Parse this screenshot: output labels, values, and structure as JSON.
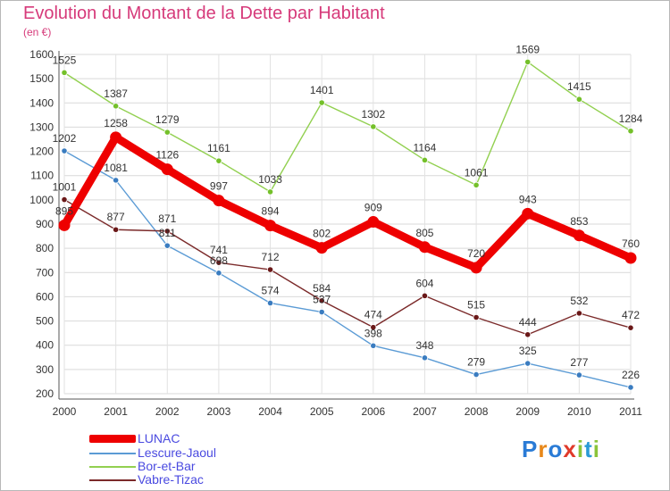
{
  "title": "Evolution du Montant de la Dette par Habitant",
  "subtitle": "(en €)",
  "logo": {
    "letters": [
      "P",
      "r",
      "o",
      "x",
      "i",
      "t",
      "i"
    ],
    "colors": [
      "#2a7bd6",
      "#e8881a",
      "#2a7bd6",
      "#e03a2a",
      "#8ac43a",
      "#2a9ad6",
      "#8ac43a"
    ]
  },
  "chart_data": {
    "type": "line",
    "title": "Evolution du Montant de la Dette par Habitant",
    "ylabel": "(en €)",
    "x": [
      "2000",
      "2001",
      "2002",
      "2003",
      "2004",
      "2005",
      "2006",
      "2007",
      "2008",
      "2009",
      "2010",
      "2011"
    ],
    "ylim": [
      200,
      1600
    ],
    "yticks": [
      "200",
      "300",
      "400",
      "500",
      "600",
      "700",
      "800",
      "900",
      "1000",
      "1100",
      "1200",
      "1300",
      "1400",
      "1500",
      "1600"
    ],
    "grid": true,
    "legend_position": "bottom-left",
    "series": [
      {
        "name": "LUNAC",
        "color": "#ee0000",
        "thick": true,
        "values": [
          895,
          1258,
          1126,
          997,
          894,
          802,
          909,
          805,
          720,
          943,
          853,
          760
        ],
        "labels": [
          "895",
          "1258",
          "1126",
          "997",
          "894",
          "802",
          "909",
          "805",
          "720",
          "943",
          "853",
          "760"
        ]
      },
      {
        "name": "Lescure-Jaoul",
        "color": "#5b9bd5",
        "point": "#3a7cc0",
        "values": [
          1202,
          1081,
          811,
          698,
          574,
          537,
          398,
          348,
          279,
          325,
          277,
          226
        ],
        "labels": [
          "1202",
          "1081",
          "811",
          "698",
          "574",
          "537",
          "398",
          "348",
          "279",
          "325",
          "277",
          "226"
        ]
      },
      {
        "name": "Bor-et-Bar",
        "color": "#92d050",
        "point": "#74c02a",
        "values": [
          1525,
          1387,
          1279,
          1161,
          1033,
          1401,
          1302,
          1164,
          1061,
          1569,
          1415,
          1284
        ],
        "labels": [
          "1525",
          "1387",
          "1279",
          "1161",
          "1033",
          "1401",
          "1302",
          "1164",
          "1061",
          "1569",
          "1415",
          "1284"
        ]
      },
      {
        "name": "Vabre-Tizac",
        "color": "#7b2a2a",
        "point": "#6a1818",
        "values": [
          1001,
          877,
          871,
          741,
          712,
          584,
          474,
          604,
          515,
          444,
          532,
          472
        ],
        "labels": [
          "1001",
          "877",
          "871",
          "741",
          "712",
          "584",
          "474",
          "604",
          "515",
          "444",
          "532",
          "472"
        ]
      }
    ]
  }
}
